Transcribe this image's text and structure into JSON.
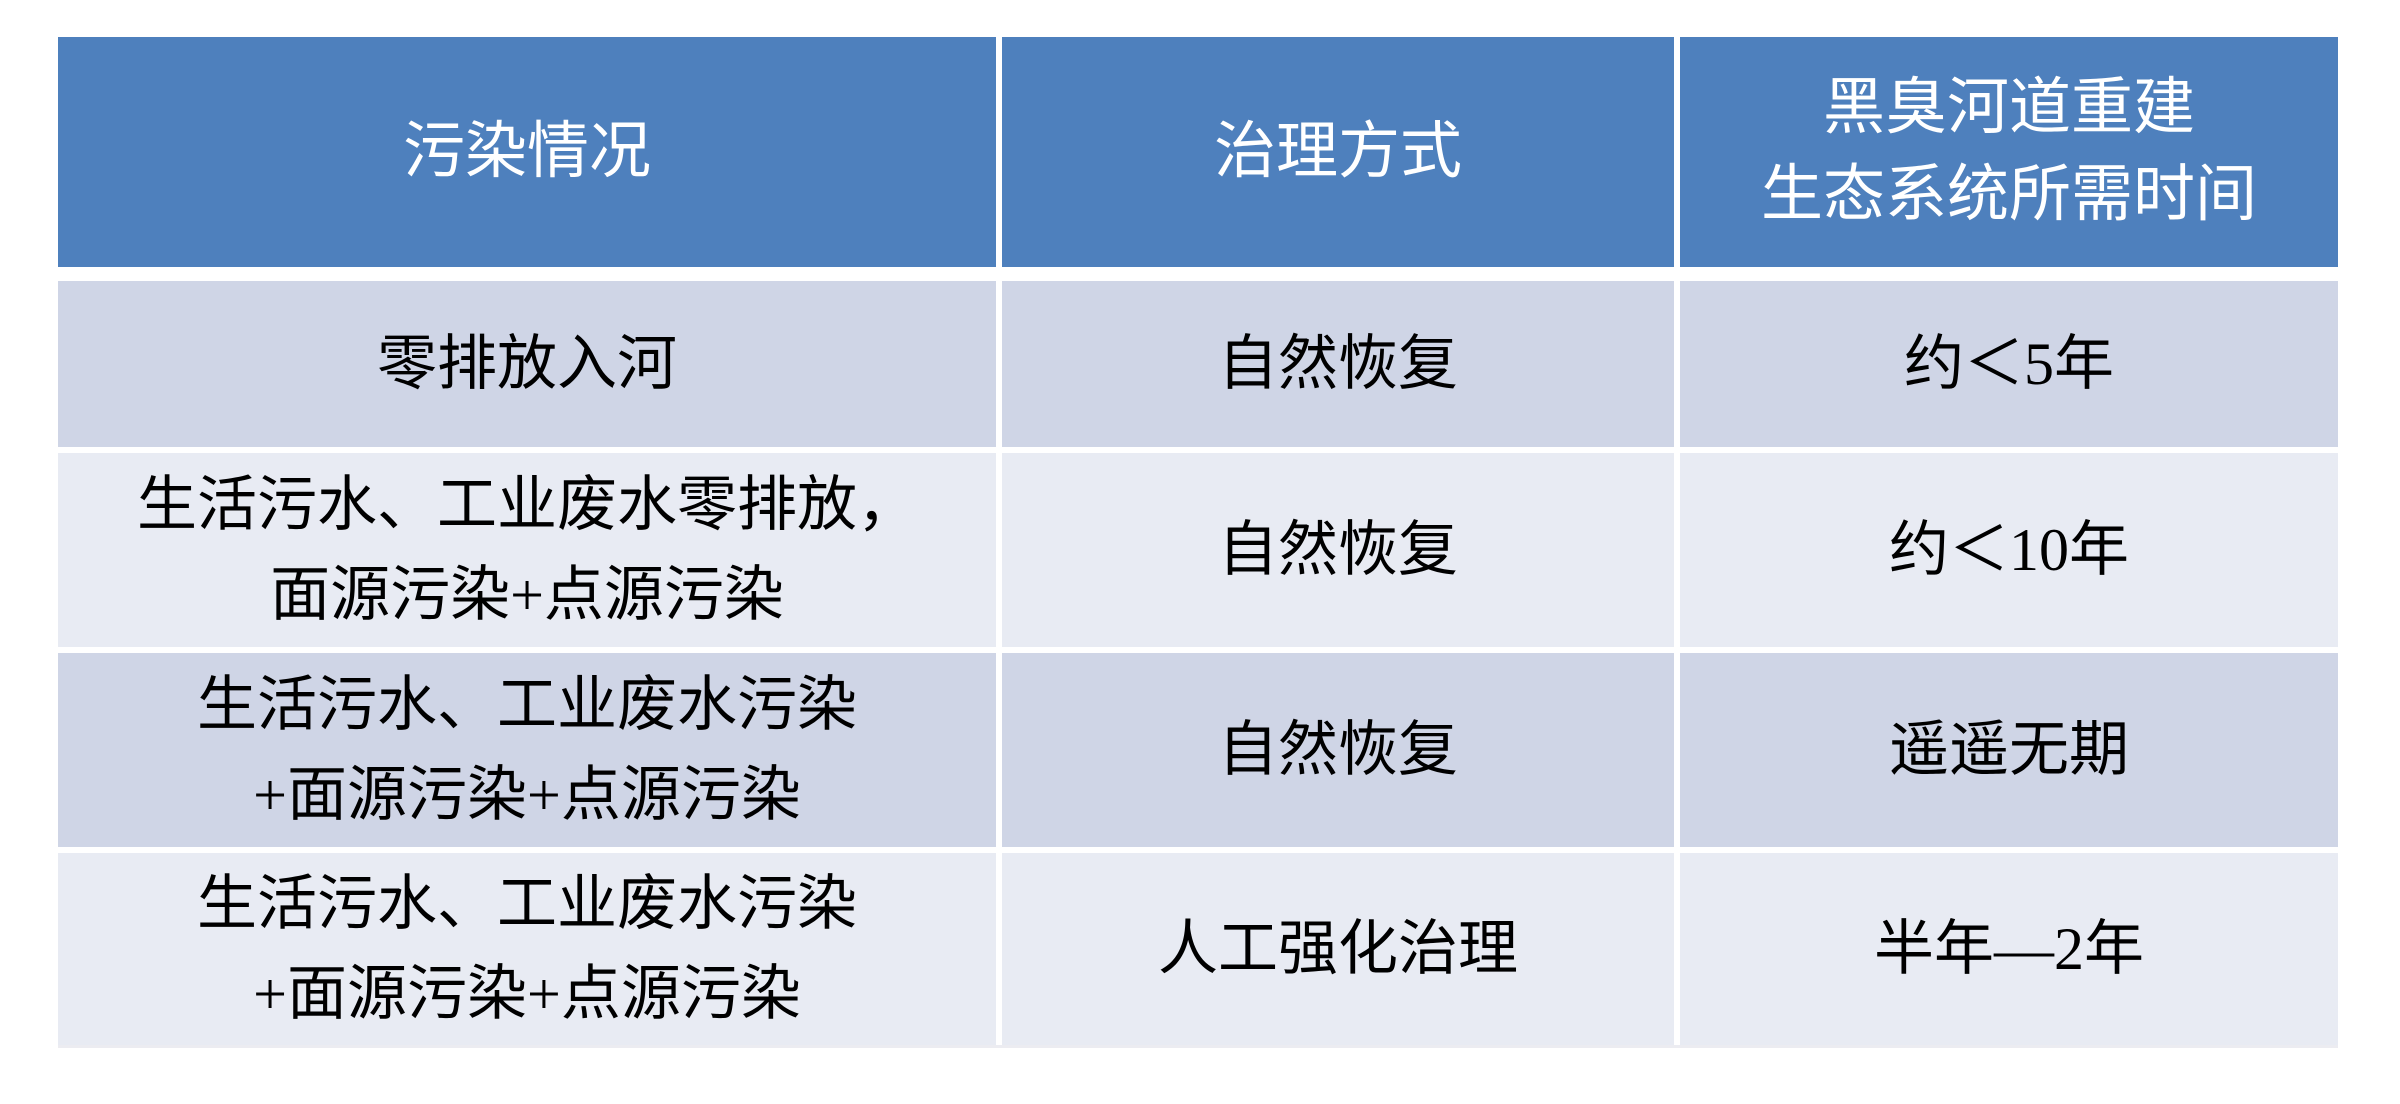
{
  "table": {
    "columns": [
      {
        "label": "污染情况"
      },
      {
        "label": "治理方式"
      },
      {
        "label": "黑臭河道重建\n生态系统所需时间"
      }
    ],
    "rows": [
      {
        "pollution": "零排放入河",
        "treatment": "自然恢复",
        "time": "约＜5年"
      },
      {
        "pollution": "生活污水、工业废水零排放，\n面源污染+点源污染",
        "treatment": "自然恢复",
        "time": "约＜10年"
      },
      {
        "pollution": "生活污水、工业废水污染\n+面源污染+点源污染",
        "treatment": "自然恢复",
        "time": "遥遥无期"
      },
      {
        "pollution": "生活污水、工业废水污染\n+面源污染+点源污染",
        "treatment": "人工强化治理",
        "time": "半年—2年"
      }
    ]
  },
  "colors": {
    "header_bg": "#4E80BD",
    "header_text": "#FFFFFF",
    "row_band_dark": "#CFD5E6",
    "row_band_light": "#E8EBF3",
    "body_text": "#000000",
    "gutter": "#FFFFFF"
  }
}
